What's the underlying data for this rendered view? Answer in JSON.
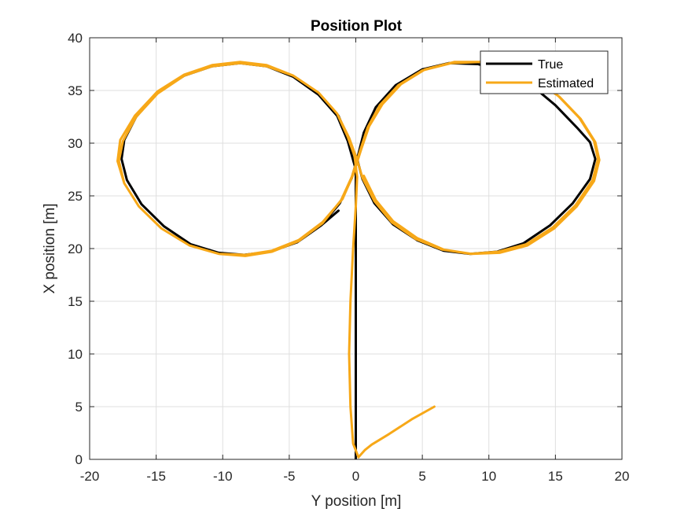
{
  "chart_data": {
    "type": "line",
    "title": "Position Plot",
    "xlabel": "Y position [m]",
    "ylabel": "X position [m]",
    "xlim": [
      -20,
      20
    ],
    "ylim": [
      0,
      40
    ],
    "xticks": [
      -20,
      -15,
      -10,
      -5,
      0,
      5,
      10,
      15,
      20
    ],
    "yticks": [
      0,
      5,
      10,
      15,
      20,
      25,
      30,
      35,
      40
    ],
    "xtick_labels": [
      "-20",
      "-15",
      "-10",
      "-5",
      "0",
      "5",
      "10",
      "15",
      "20"
    ],
    "ytick_labels": [
      "0",
      "5",
      "10",
      "15",
      "20",
      "25",
      "30",
      "35",
      "40"
    ],
    "grid": true,
    "legend_position": "top-right",
    "series": [
      {
        "name": "True",
        "color": "#000000",
        "line_width": 3,
        "x": [
          0,
          0,
          0,
          0,
          0,
          0,
          0,
          -0.6,
          -1.4,
          -2.8,
          -4.7,
          -6.7,
          -8.7,
          -10.8,
          -12.9,
          -14.9,
          -16.5,
          -17.4,
          -17.6,
          -17.2,
          -16.1,
          -14.4,
          -12.4,
          -10.3,
          -8.4,
          -6.4,
          -4.4,
          -2.6,
          -1.2,
          -0.3,
          0.1,
          0.6,
          1.5,
          3.0,
          5.0,
          7.0,
          9.2,
          11.2,
          13.2,
          15.0,
          16.6,
          17.6,
          18.0,
          17.6,
          16.3,
          14.6,
          12.6,
          10.6,
          8.6,
          6.6,
          4.6,
          2.8,
          1.4,
          0.5,
          0.1,
          -0.5,
          -1.3,
          -2.7,
          -4.6,
          -6.6,
          -8.7,
          -10.8,
          -12.9,
          -14.9,
          -16.5,
          -17.4,
          -17.6,
          -17.2,
          -16.1,
          -14.4,
          -12.4,
          -10.3,
          -8.4,
          -6.4,
          -4.4,
          -2.6,
          -1.3
        ],
        "y": [
          0,
          5,
          10,
          15,
          20,
          25,
          27.5,
          30.2,
          32.6,
          34.6,
          36.3,
          37.3,
          37.6,
          37.3,
          36.4,
          34.8,
          32.5,
          30.3,
          28.5,
          26.5,
          24.2,
          22.1,
          20.4,
          19.6,
          19.4,
          19.7,
          20.6,
          22.2,
          24.3,
          26.7,
          28.5,
          31.0,
          33.4,
          35.5,
          37.0,
          37.6,
          37.5,
          36.8,
          35.5,
          33.6,
          31.5,
          30.1,
          28.5,
          26.6,
          24.3,
          22.2,
          20.5,
          19.7,
          19.5,
          19.8,
          20.8,
          22.3,
          24.3,
          26.6,
          28.5,
          30.2,
          32.6,
          34.6,
          36.3,
          37.3,
          37.6,
          37.3,
          36.4,
          34.8,
          32.5,
          30.3,
          28.5,
          26.5,
          24.2,
          22.1,
          20.4,
          19.6,
          19.4,
          19.7,
          20.6,
          22.2,
          23.6
        ]
      },
      {
        "name": "Estimated",
        "color": "#f7a818",
        "line_width": 3,
        "x": [
          5.9,
          4.2,
          2.5,
          1.2,
          0.7,
          0.2,
          -0.2,
          -0.4,
          -0.5,
          -0.4,
          -0.2,
          0,
          0.1,
          -0.1,
          -0.6,
          -1.4,
          -2.8,
          -4.7,
          -6.7,
          -8.7,
          -10.8,
          -12.9,
          -14.9,
          -16.5,
          -17.5,
          -17.8,
          -17.4,
          -16.3,
          -14.6,
          -12.5,
          -10.3,
          -8.3,
          -6.3,
          -4.3,
          -2.5,
          -1.1,
          -0.3,
          0.3,
          0.9,
          1.8,
          3.2,
          5.0,
          7.2,
          9.3,
          11.3,
          13.3,
          15.2,
          16.8,
          17.9,
          18.2,
          17.8,
          16.5,
          14.8,
          12.8,
          10.7,
          8.6,
          6.5,
          4.5,
          2.7,
          1.4,
          0.5,
          0.1,
          -0.5,
          -1.4,
          -2.8,
          -4.7,
          -6.7,
          -8.7,
          -10.8,
          -12.9,
          -14.9,
          -16.6,
          -17.7,
          -17.9,
          -17.4,
          -16.3,
          -14.6,
          -12.5,
          -10.3,
          -8.3,
          -6.3,
          -4.3,
          -2.5,
          -1.0,
          -0.2,
          0.4,
          1.0,
          2.0,
          3.4,
          5.2,
          7.4,
          9.4,
          11.4,
          13.4,
          15.3,
          16.9,
          18.0,
          18.3,
          17.9,
          16.6,
          14.9,
          12.9,
          10.8,
          8.7,
          6.6,
          4.6,
          2.8,
          1.5,
          0.6
        ],
        "y": [
          5.0,
          3.8,
          2.4,
          1.4,
          0.9,
          0.2,
          1.5,
          5,
          10,
          15,
          20,
          24,
          26.8,
          28.8,
          30.6,
          32.8,
          34.8,
          36.4,
          37.3,
          37.6,
          37.3,
          36.4,
          34.7,
          32.5,
          30.2,
          28.3,
          26.2,
          24.0,
          21.9,
          20.3,
          19.5,
          19.3,
          19.7,
          20.7,
          22.4,
          24.6,
          26.8,
          29.2,
          31.5,
          33.6,
          35.5,
          36.9,
          37.6,
          37.7,
          37.2,
          36.1,
          34.5,
          32.4,
          30.2,
          28.5,
          26.5,
          24.1,
          22.0,
          20.4,
          19.7,
          19.5,
          19.9,
          20.9,
          22.5,
          24.5,
          26.7,
          28.4,
          30.5,
          32.8,
          34.8,
          36.4,
          37.4,
          37.7,
          37.4,
          36.5,
          34.9,
          32.6,
          30.3,
          28.3,
          26.2,
          24.0,
          21.9,
          20.3,
          19.5,
          19.4,
          19.8,
          20.8,
          22.5,
          24.7,
          27.0,
          29.4,
          31.6,
          33.7,
          35.6,
          37.0,
          37.7,
          37.7,
          37.2,
          36.1,
          34.4,
          32.3,
          30.1,
          28.4,
          26.4,
          24.0,
          21.9,
          20.3,
          19.6,
          19.5,
          19.9,
          21.0,
          22.6,
          24.6,
          26.9
        ]
      }
    ]
  }
}
